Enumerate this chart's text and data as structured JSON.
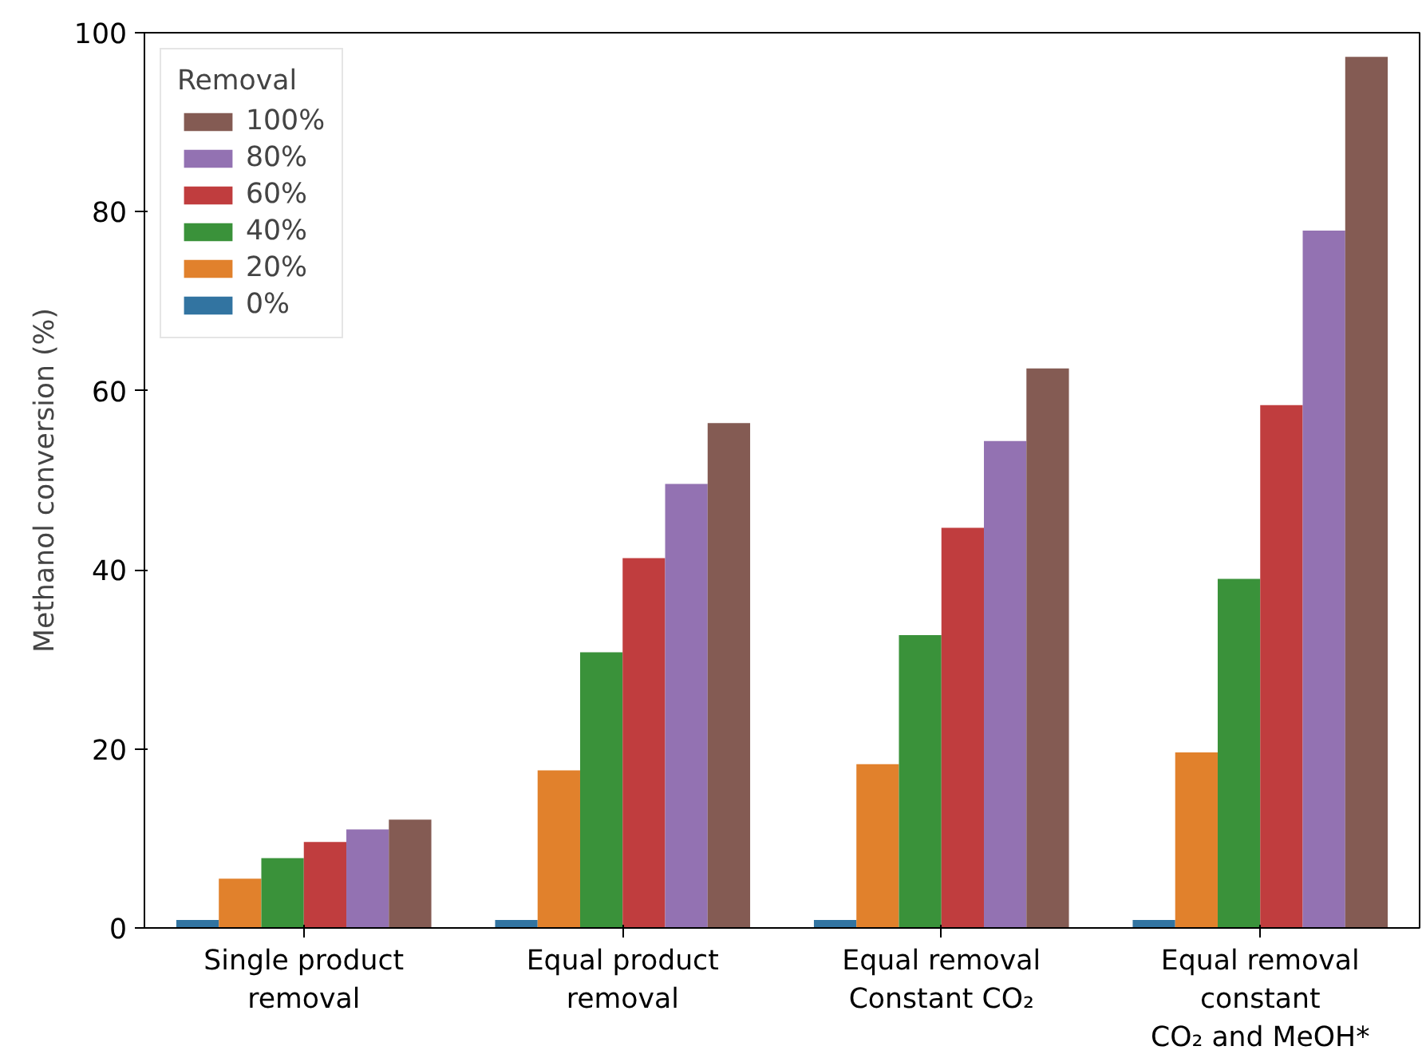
{
  "chart_data": {
    "type": "bar",
    "ylabel": "Methanol conversion (%)",
    "legend_title": "Removal",
    "legend": "top left",
    "grid": false,
    "categories": [
      "Single product\nremoval",
      "Equal product\nremoval",
      "Equal removal\nConstant CO₂",
      "Equal removal\nconstant\nCO₂ and MeOH*"
    ],
    "ylim": [
      0,
      100
    ],
    "yticks": [
      0,
      20,
      40,
      60,
      80,
      100
    ],
    "series": [
      {
        "name": "0%",
        "color": "#3274a1",
        "values": [
          0.9,
          0.9,
          0.9,
          0.9
        ]
      },
      {
        "name": "20%",
        "color": "#e1812c",
        "values": [
          5.5,
          17.6,
          18.3,
          19.6
        ]
      },
      {
        "name": "40%",
        "color": "#3a923a",
        "values": [
          7.8,
          30.8,
          32.7,
          39.0
        ]
      },
      {
        "name": "60%",
        "color": "#c03d3e",
        "values": [
          9.6,
          41.3,
          44.7,
          58.4
        ]
      },
      {
        "name": "80%",
        "color": "#9372b2",
        "values": [
          11.0,
          49.6,
          54.4,
          77.9
        ]
      },
      {
        "name": "100%",
        "color": "#845b53",
        "values": [
          12.1,
          56.4,
          62.5,
          97.3
        ]
      }
    ]
  }
}
